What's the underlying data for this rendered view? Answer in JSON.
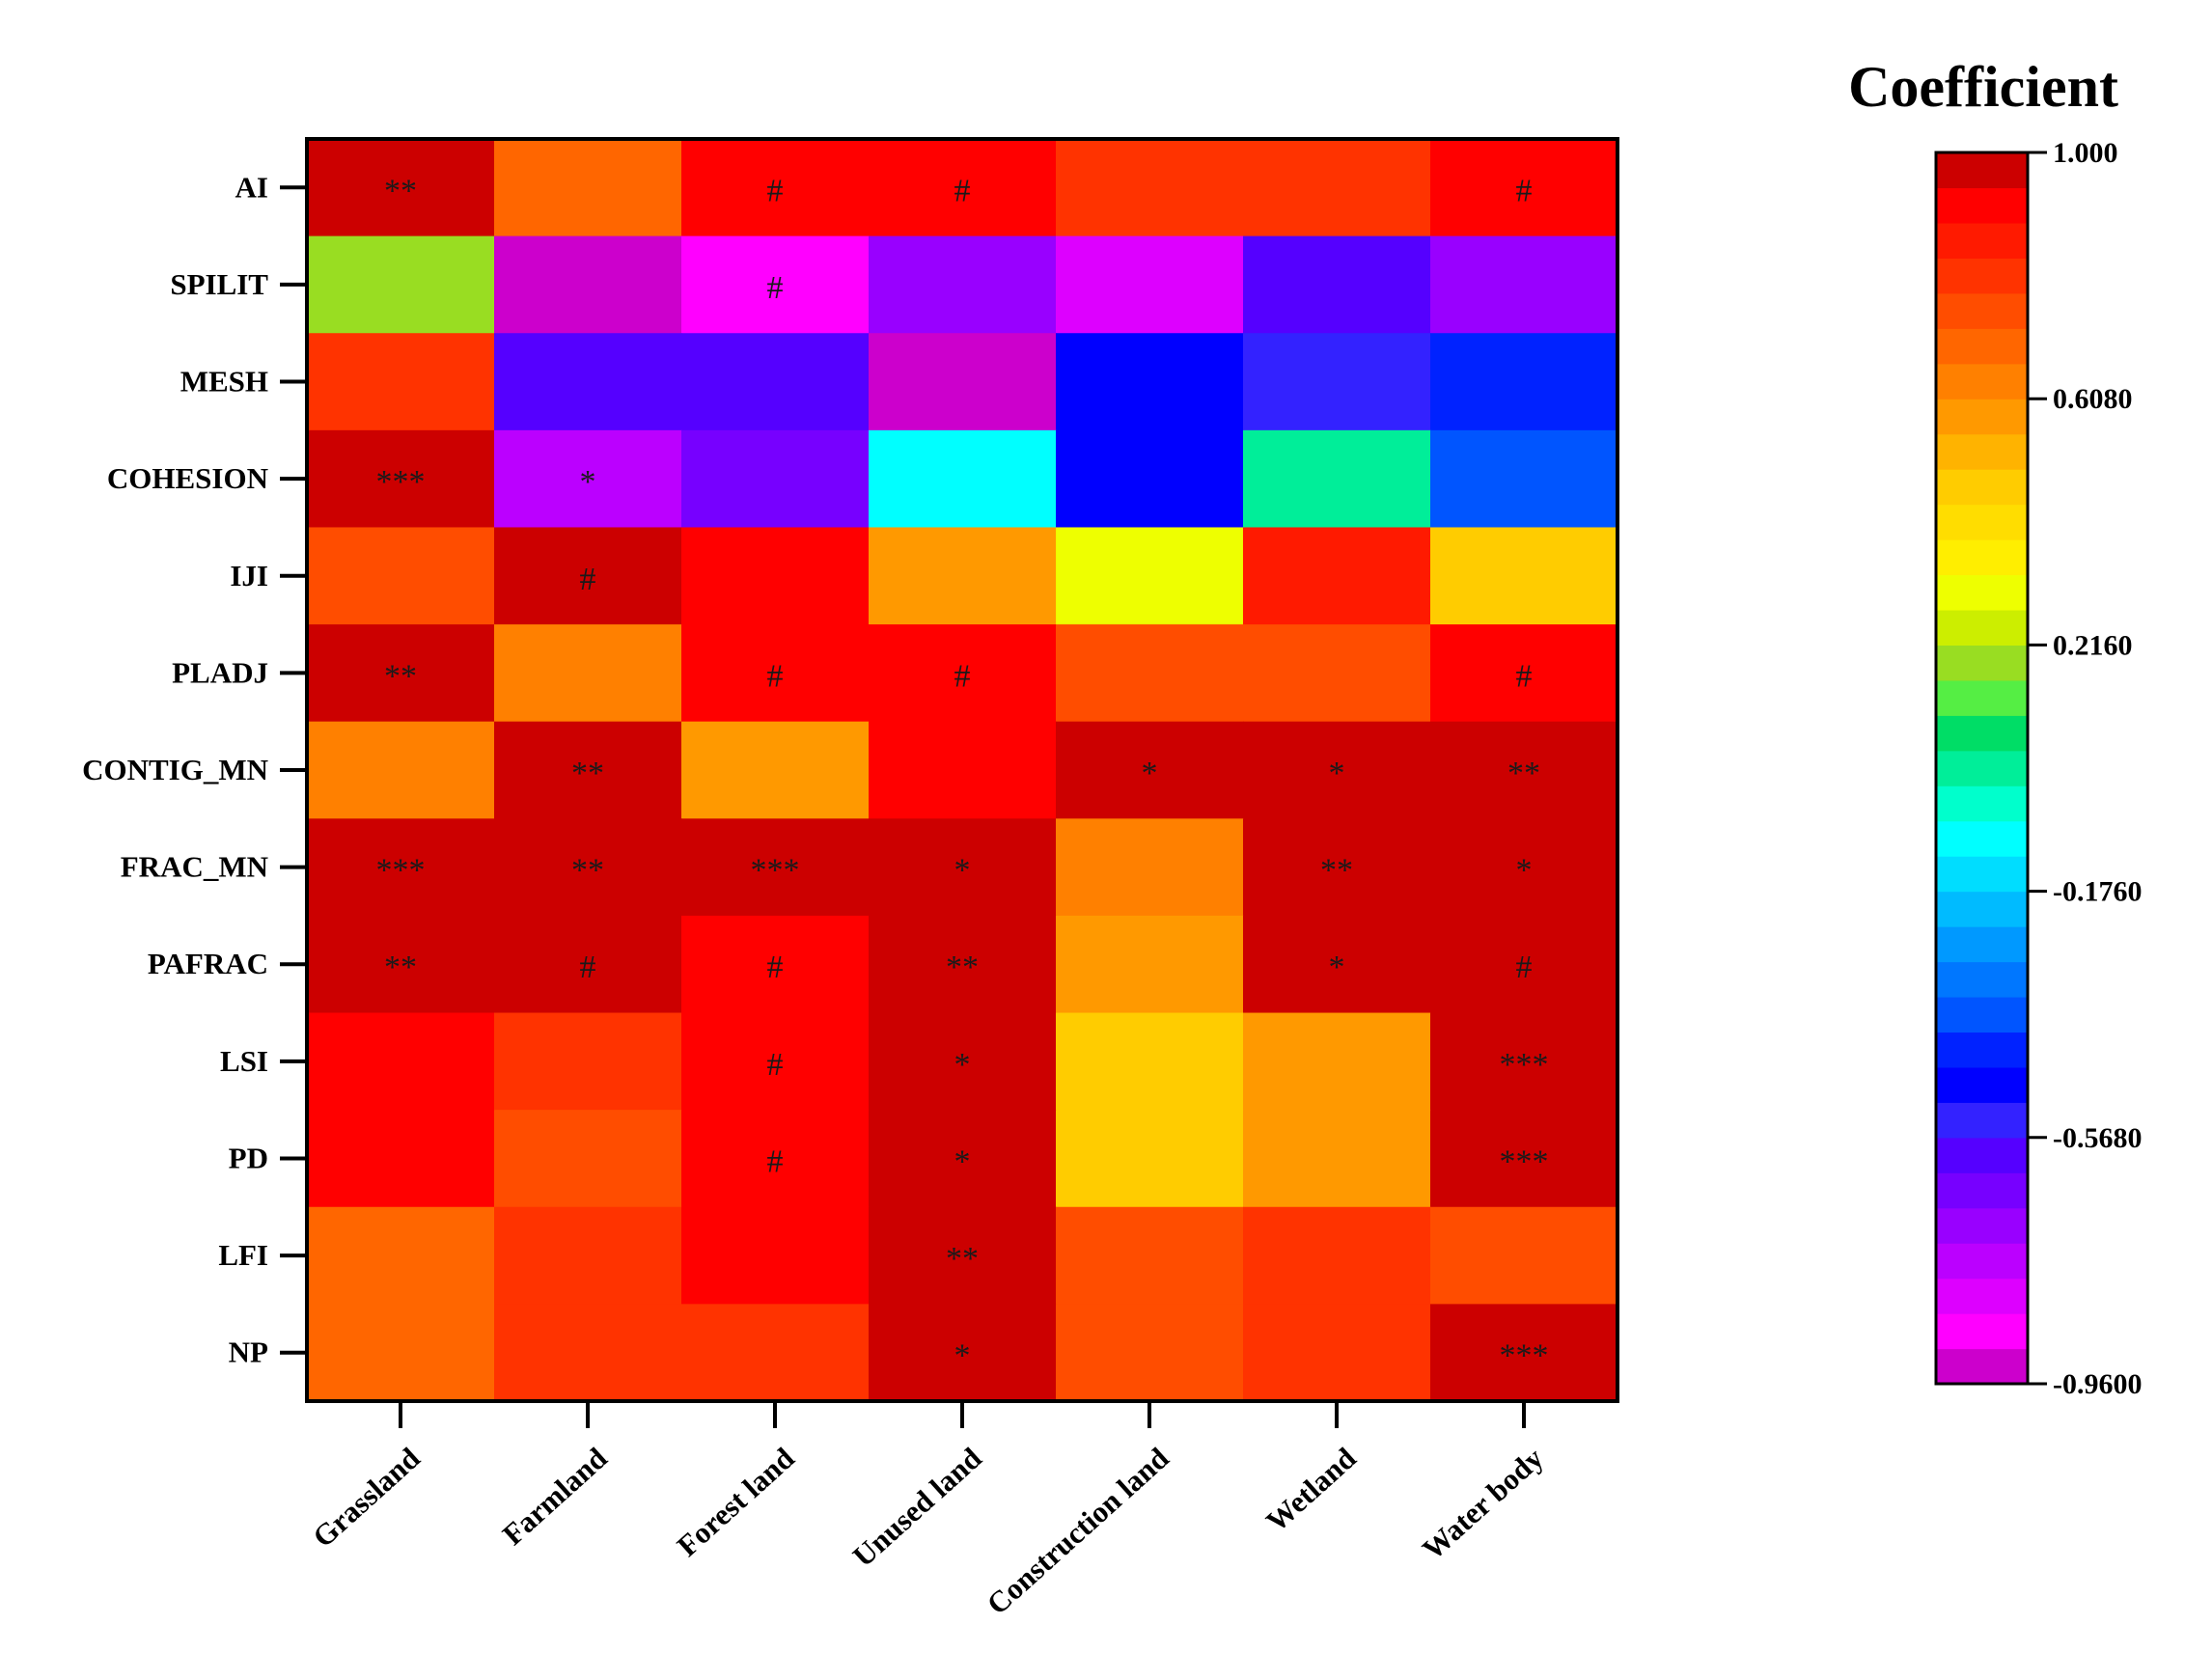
{
  "chart_data": {
    "type": "heatmap",
    "title": "",
    "colorbar_title": "Coefficient",
    "colorbar_ticks": [
      "1.000",
      "0.6080",
      "0.2160",
      "-0.1760",
      "-0.5680",
      "-0.9600"
    ],
    "colorbar_range": [
      -0.96,
      1.0
    ],
    "columns": [
      "Grassland",
      "Farmland",
      "Forest land",
      "Unused land",
      "Construction land",
      "Wetland",
      "Water body"
    ],
    "rows": [
      "AI",
      "SPILIT",
      "MESH",
      "COHESION",
      "IJI",
      "PLADJ",
      "CONTIG_MN",
      "FRAC_MN",
      "PAFRAC",
      "LSI",
      "PD",
      "LFI",
      "NP"
    ],
    "values": [
      [
        0.98,
        0.7,
        0.9,
        0.9,
        0.78,
        0.78,
        0.9
      ],
      [
        0.2,
        -0.93,
        -0.85,
        -0.7,
        -0.8,
        -0.58,
        -0.68
      ],
      [
        0.78,
        -0.58,
        -0.58,
        -0.93,
        -0.48,
        -0.52,
        -0.44
      ],
      [
        0.98,
        -0.76,
        -0.66,
        -0.12,
        -0.48,
        0.0,
        -0.38
      ],
      [
        0.74,
        0.98,
        0.9,
        0.56,
        0.3,
        0.84,
        0.46
      ],
      [
        0.98,
        0.66,
        0.9,
        0.9,
        0.76,
        0.76,
        0.9
      ],
      [
        0.66,
        0.98,
        0.6,
        0.9,
        0.98,
        0.98,
        0.98
      ],
      [
        0.98,
        0.98,
        0.98,
        0.98,
        0.64,
        0.98,
        0.98
      ],
      [
        0.98,
        0.98,
        0.9,
        0.98,
        0.58,
        0.98,
        0.98
      ],
      [
        0.9,
        0.78,
        0.9,
        0.98,
        0.46,
        0.58,
        0.98
      ],
      [
        0.9,
        0.76,
        0.9,
        0.98,
        0.46,
        0.58,
        0.98
      ],
      [
        0.68,
        0.82,
        0.9,
        0.98,
        0.74,
        0.82,
        0.76
      ],
      [
        0.68,
        0.8,
        0.8,
        0.98,
        0.74,
        0.78,
        0.98
      ]
    ],
    "significance": [
      [
        "**",
        "",
        "#",
        "#",
        "",
        "",
        "#"
      ],
      [
        "",
        "",
        "#",
        "",
        "",
        "",
        ""
      ],
      [
        "",
        "",
        "",
        "",
        "",
        "",
        ""
      ],
      [
        "***",
        "*",
        "",
        "",
        "",
        "",
        ""
      ],
      [
        "",
        "#",
        "",
        "",
        "",
        "",
        ""
      ],
      [
        "**",
        "",
        "#",
        "#",
        "",
        "",
        "#"
      ],
      [
        "",
        "**",
        "",
        "",
        "*",
        "*",
        "**"
      ],
      [
        "***",
        "**",
        "***",
        "*",
        "",
        "**",
        "*"
      ],
      [
        "**",
        "#",
        "#",
        "**",
        "",
        "*",
        "#"
      ],
      [
        "",
        "",
        "#",
        "*",
        "",
        "",
        "***"
      ],
      [
        "",
        "",
        "#",
        "*",
        "",
        "",
        "***"
      ],
      [
        "",
        "",
        "",
        "**",
        "",
        "",
        ""
      ],
      [
        "",
        "",
        "",
        "*",
        "",
        "",
        "***"
      ]
    ],
    "colorscale": [
      "#cc00cc",
      "#ff00ff",
      "#dd00ff",
      "#bb00ff",
      "#9900ff",
      "#7700ff",
      "#5500ff",
      "#3322ff",
      "#0000ff",
      "#0022ff",
      "#0055ff",
      "#0077ff",
      "#0099ff",
      "#00bbff",
      "#00ddff",
      "#00ffff",
      "#00ffcc",
      "#00ee99",
      "#00dd66",
      "#55ee44",
      "#99dd22",
      "#ccee00",
      "#eeff00",
      "#ffee00",
      "#ffdd00",
      "#ffcc00",
      "#ffb300",
      "#ff9900",
      "#ff8000",
      "#ff6600",
      "#ff4d00",
      "#ff3300",
      "#ff1a00",
      "#ff0000",
      "#cc0000"
    ]
  }
}
